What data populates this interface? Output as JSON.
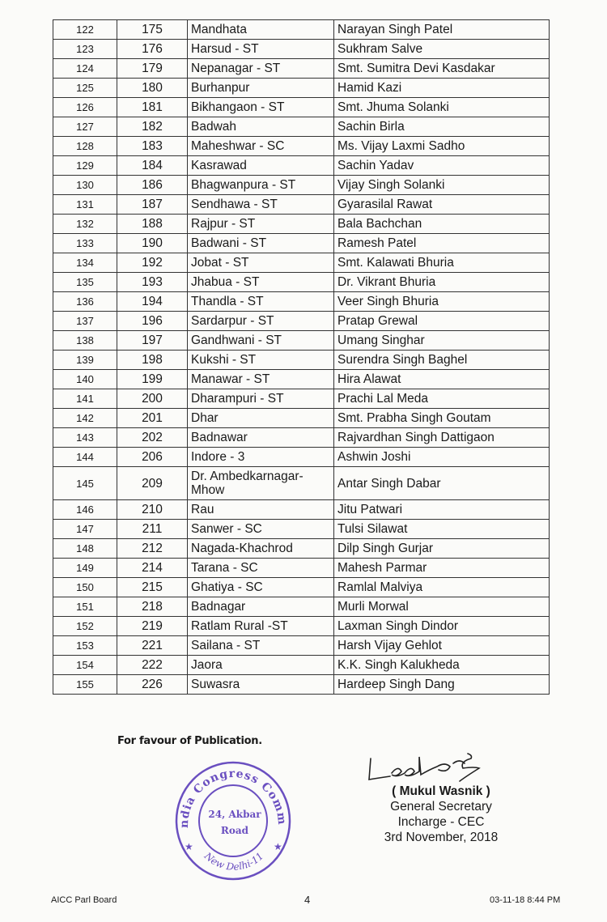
{
  "table": {
    "rows": [
      [
        "122",
        "175",
        "Mandhata",
        "Narayan Singh Patel"
      ],
      [
        "123",
        "176",
        "Harsud - ST",
        "Sukhram Salve"
      ],
      [
        "124",
        "179",
        "Nepanagar - ST",
        "Smt. Sumitra Devi Kasdakar"
      ],
      [
        "125",
        "180",
        "Burhanpur",
        "Hamid Kazi"
      ],
      [
        "126",
        "181",
        "Bikhangaon - ST",
        "Smt. Jhuma Solanki"
      ],
      [
        "127",
        "182",
        "Badwah",
        "Sachin Birla"
      ],
      [
        "128",
        "183",
        "Maheshwar - SC",
        "Ms. Vijay Laxmi Sadho"
      ],
      [
        "129",
        "184",
        "Kasrawad",
        "Sachin Yadav"
      ],
      [
        "130",
        "186",
        "Bhagwanpura - ST",
        "Vijay Singh Solanki"
      ],
      [
        "131",
        "187",
        "Sendhawa - ST",
        "Gyarasilal Rawat"
      ],
      [
        "132",
        "188",
        "Rajpur - ST",
        "Bala Bachchan"
      ],
      [
        "133",
        "190",
        "Badwani - ST",
        "Ramesh Patel"
      ],
      [
        "134",
        "192",
        "Jobat - ST",
        "Smt. Kalawati Bhuria"
      ],
      [
        "135",
        "193",
        "Jhabua - ST",
        "Dr. Vikrant Bhuria"
      ],
      [
        "136",
        "194",
        "Thandla - ST",
        "Veer Singh Bhuria"
      ],
      [
        "137",
        "196",
        "Sardarpur - ST",
        "Pratap Grewal"
      ],
      [
        "138",
        "197",
        "Gandhwani - ST",
        "Umang Singhar"
      ],
      [
        "139",
        "198",
        "Kukshi - ST",
        "Surendra Singh Baghel"
      ],
      [
        "140",
        "199",
        "Manawar -  ST",
        "Hira Alawat"
      ],
      [
        "141",
        "200",
        "Dharampuri - ST",
        "Prachi Lal Meda"
      ],
      [
        "142",
        "201",
        "Dhar",
        "Smt. Prabha Singh Goutam"
      ],
      [
        "143",
        "202",
        "Badnawar",
        "Rajvardhan Singh Dattigaon"
      ],
      [
        "144",
        "206",
        "Indore - 3",
        "Ashwin Joshi"
      ],
      [
        "145",
        "209",
        "Dr. Ambedkarnagar-Mhow",
        "Antar Singh Dabar"
      ],
      [
        "146",
        "210",
        "Rau",
        "Jitu Patwari"
      ],
      [
        "147",
        "211",
        "Sanwer - SC",
        "Tulsi Silawat"
      ],
      [
        "148",
        "212",
        "Nagada-Khachrod",
        "Dilp Singh Gurjar"
      ],
      [
        "149",
        "214",
        "Tarana - SC",
        "Mahesh Parmar"
      ],
      [
        "150",
        "215",
        "Ghatiya - SC",
        "Ramlal Malviya"
      ],
      [
        "151",
        "218",
        "Badnagar",
        "Murli Morwal"
      ],
      [
        "152",
        "219",
        "Ratlam Rural -ST",
        "Laxman Singh Dindor"
      ],
      [
        "153",
        "221",
        "Sailana - ST",
        "Harsh Vijay Gehlot"
      ],
      [
        "154",
        "222",
        "Jaora",
        "K.K. Singh Kalukheda"
      ],
      [
        "155",
        "226",
        "Suwasra",
        "Hardeep Singh Dang"
      ]
    ]
  },
  "publication_note": "For favour of Publication.",
  "stamp": {
    "ring_text": "All India Congress Committee",
    "center_line1": "24, Akbar",
    "center_line2": "Road",
    "bottom_text": "New Delhi-11",
    "color": "#6a4fc0"
  },
  "signatory": {
    "name": "( Mukul Wasnik )",
    "title": "General Secretary",
    "role": "Incharge - CEC",
    "date": "3rd November, 2018"
  },
  "footer": {
    "left": "AICC Parl Board",
    "page": "4",
    "right": "03-11-18  8:44 PM"
  }
}
